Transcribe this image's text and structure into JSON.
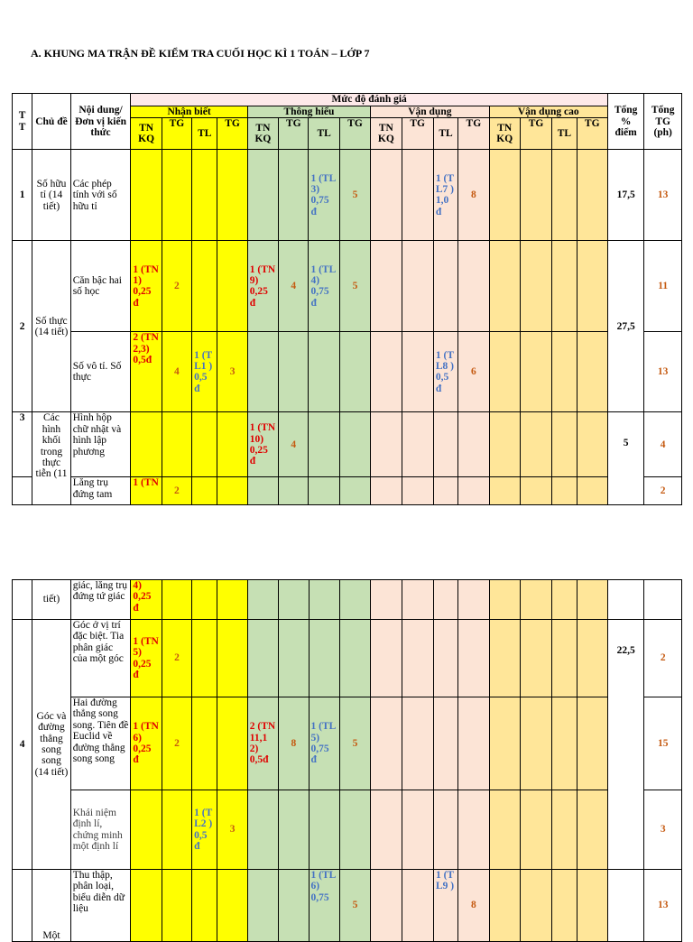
{
  "title": "A. KHUNG MA TRẬN ĐỀ KIỂM TRA CUỐI HỌC KÌ 1 TOÁN – LỚP 7",
  "header": {
    "tt": "T T",
    "chu_de": "Chủ đề",
    "noi_dung": "Nội dung/Đơn vị kiến thức",
    "muc_do": "Mức độ đánh giá",
    "nhan_biet": "Nhận biết",
    "thong_hieu": "Thông hiểu",
    "van_dung": "Vận dụng",
    "van_dung_cao": "Vận dụng cao",
    "tnkq": "TN KQ",
    "tg": "TG",
    "tl": "TL",
    "tong_diem": "Tổng % điểm",
    "tong_tg": "Tổng TG (ph)"
  },
  "rows": [
    {
      "tt": "1",
      "topic": "Số hữu tỉ (14 tiết)",
      "unit": "Các phép tính với số hữu tỉ",
      "th_tl": "1 (TL 3) 0,75 đ",
      "th_tl_tg": "5",
      "vd_tl": "1 (T L7 ) 1,0 đ",
      "vd_tl_tg": "8",
      "pct": "17,5",
      "time": "13"
    },
    {
      "tt": "2",
      "topic": "Số thực (14 tiết)",
      "unit": "Căn bậc hai số học",
      "nb_tn": "1 (TN 1) 0,25 đ",
      "nb_tn_tg": "2",
      "th_tn": "1 (TN 9) 0,25 đ",
      "th_tn_tg": "4",
      "th_tl": "1 (TL 4) 0,75 đ",
      "th_tl_tg": "5",
      "pct": "27,5",
      "time": "11"
    },
    {
      "unit": "Số vô tỉ. Số thực",
      "nb_tn": "2 (TN 2,3) 0,5đ",
      "nb_tn_tg": "4",
      "nb_tl": "1 (T L1 ) 0,5 đ",
      "nb_tl_tg": "3",
      "vd_tl": "1 (T L8 ) 0,5 đ",
      "vd_tl_tg": "6",
      "time": "13"
    },
    {
      "tt": "3",
      "topic": "Các hình khối trong thực tiễn (11",
      "unit": "Hình hộp chữ nhật và hình lập phương",
      "th_tn": "1 (TN 10) 0,25 đ",
      "th_tn_tg": "4",
      "pct": "5",
      "time": "4"
    },
    {
      "unit": "Lăng trụ đứng tam",
      "nb_tn": "1 (TN",
      "nb_tn_tg": "2",
      "time": "2"
    }
  ],
  "page2": {
    "cont_topic": "tiết)",
    "cont_unit": "giác, lăng trụ đứng tứ giác",
    "cont_nb_tn": "4) 0,25 đ",
    "rows": [
      {
        "tt": "4",
        "topic": "Góc và đường thẳng song song (14 tiết)",
        "unit": "Góc ở vị trí đặc biệt. Tia phân giác của một góc",
        "nb_tn": "1 (TN 5) 0,25 đ",
        "nb_tn_tg": "2",
        "pct": "22,5",
        "time": "2"
      },
      {
        "unit": "Hai đường thẳng song song. Tiên đề Euclid về đường thẳng song song",
        "nb_tn": "1 (TN 6) 0,25 đ",
        "nb_tn_tg": "2",
        "th_tn": "2 (TN 11,1 2) 0,5đ",
        "th_tn_tg": "8",
        "th_tl": "1 (TL 5) 0,75 đ",
        "th_tl_tg": "5",
        "time": "15"
      },
      {
        "unit": "Khái niệm định lí, chứng minh một định lí",
        "nb_tl": "1 (T L2 ) 0,5 đ",
        "nb_tl_tg": "3",
        "time": "3"
      },
      {
        "topic": "Một",
        "unit": "Thu thập, phân loại, biểu diễn dữ liệu",
        "th_tl": "1 (TL 6) 0,75",
        "th_tl_tg": "5",
        "vd_tl": "1 (T L9 )",
        "vd_tl_tg": "8",
        "time": "13"
      }
    ]
  }
}
